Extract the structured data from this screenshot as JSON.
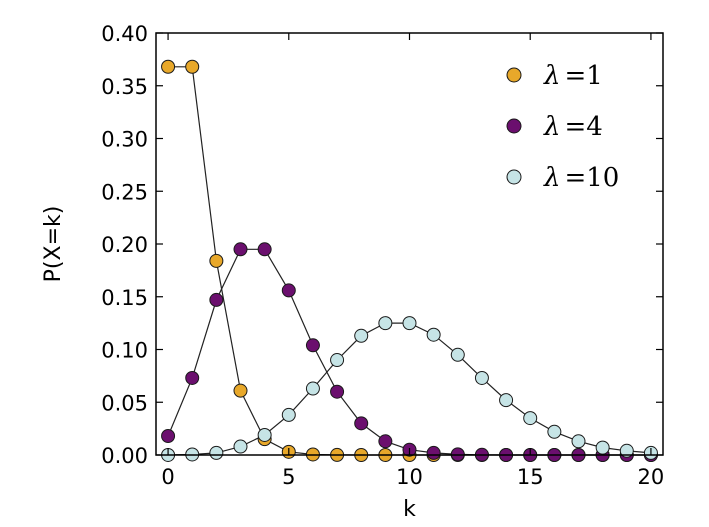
{
  "chart_data": {
    "type": "line",
    "title": "",
    "xlabel": "k",
    "ylabel": "P(X=k)",
    "xlim": [
      -0.5,
      20.5
    ],
    "ylim": [
      0,
      0.4
    ],
    "xticks": [
      0,
      5,
      10,
      15,
      20
    ],
    "xtick_labels": [
      "0",
      "5",
      "10",
      "15",
      "20"
    ],
    "yticks": [
      0,
      0.05,
      0.1,
      0.15,
      0.2,
      0.25,
      0.3,
      0.35,
      0.4
    ],
    "ytick_labels": [
      "0.00",
      "0.05",
      "0.10",
      "0.15",
      "0.20",
      "0.25",
      "0.30",
      "0.35",
      "0.40"
    ],
    "grid": false,
    "legend_position": "top-right",
    "series": [
      {
        "name": "λ=1",
        "legend_symbol": "λ",
        "legend_value": "=1",
        "color": "#e8a82a",
        "x": [
          0,
          1,
          2,
          3,
          4,
          5,
          6,
          7,
          8,
          9,
          10,
          11,
          12,
          13,
          14,
          15,
          16,
          17,
          18,
          19,
          20
        ],
        "values": [
          0.368,
          0.368,
          0.184,
          0.061,
          0.015,
          0.003,
          0.0005,
          0.0001,
          0,
          0,
          0,
          0,
          0,
          0,
          0,
          0,
          0,
          0,
          0,
          0,
          0
        ]
      },
      {
        "name": "λ=4",
        "legend_symbol": "λ",
        "legend_value": "=4",
        "color": "#6b0f6e",
        "x": [
          0,
          1,
          2,
          3,
          4,
          5,
          6,
          7,
          8,
          9,
          10,
          11,
          12,
          13,
          14,
          15,
          16,
          17,
          18,
          19,
          20
        ],
        "values": [
          0.018,
          0.073,
          0.147,
          0.195,
          0.195,
          0.156,
          0.104,
          0.06,
          0.03,
          0.013,
          0.005,
          0.002,
          0.0006,
          0.0002,
          0,
          0,
          0,
          0,
          0,
          0,
          0
        ]
      },
      {
        "name": "λ=10",
        "legend_symbol": "λ",
        "legend_value": "=10",
        "color": "#c6e4e6",
        "x": [
          0,
          1,
          2,
          3,
          4,
          5,
          6,
          7,
          8,
          9,
          10,
          11,
          12,
          13,
          14,
          15,
          16,
          17,
          18,
          19,
          20
        ],
        "values": [
          5e-05,
          0.0005,
          0.002,
          0.008,
          0.019,
          0.038,
          0.063,
          0.09,
          0.113,
          0.125,
          0.125,
          0.114,
          0.095,
          0.073,
          0.052,
          0.035,
          0.022,
          0.013,
          0.007,
          0.004,
          0.002
        ]
      }
    ]
  }
}
